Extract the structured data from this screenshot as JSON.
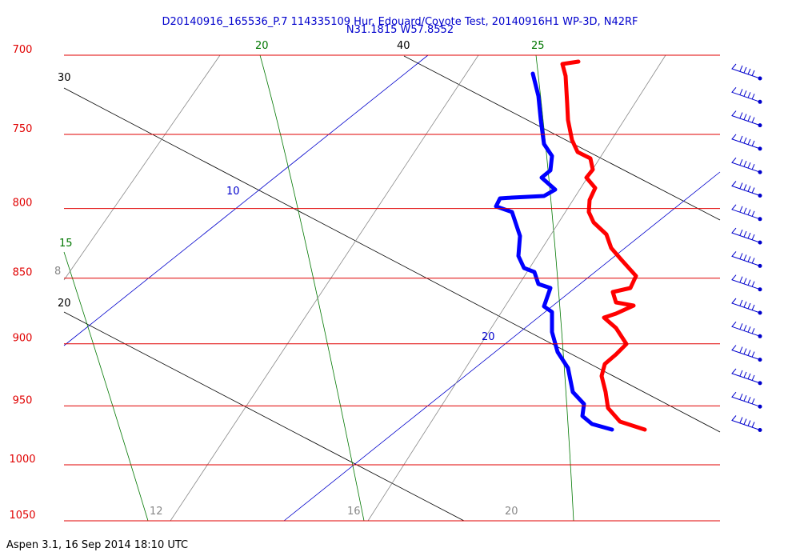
{
  "header": {
    "title": "D20140916_165536_P.7 114335109 Hur. Edouard/Coyote Test, 20140916H1 WP-3D, N42RF",
    "subtitle": "N31.1815 W57.8552"
  },
  "pressure_axis": {
    "scale": "log",
    "range": [
      700,
      1050
    ],
    "levels": [
      700,
      750,
      800,
      850,
      900,
      950,
      1000,
      1050
    ]
  },
  "line_labels": [
    30,
    40,
    20,
    25,
    10,
    15,
    8,
    20,
    20,
    12,
    16,
    20
  ],
  "footer": "Aspen 3.1, 16 Sep 2014  18:10 UTC"
}
